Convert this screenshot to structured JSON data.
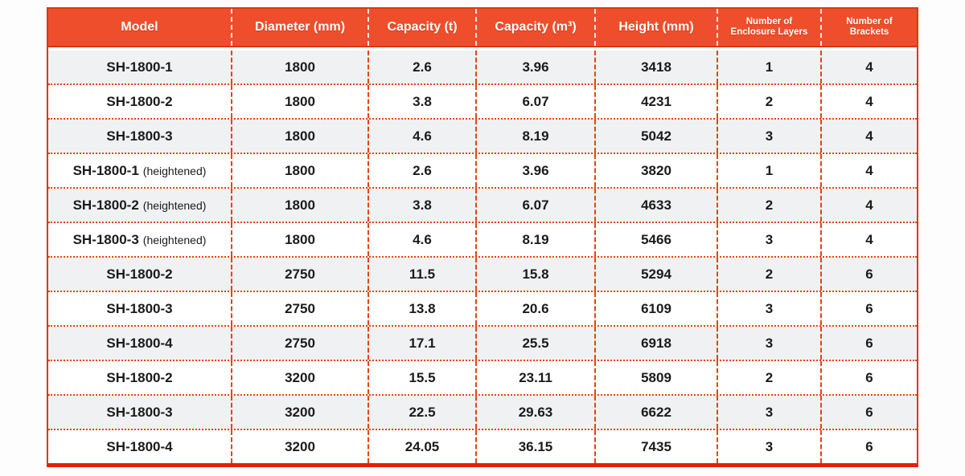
{
  "table": {
    "columns": [
      {
        "id": "model",
        "label": "Model",
        "small": false
      },
      {
        "id": "diameter",
        "label": "Diameter (mm)",
        "small": false
      },
      {
        "id": "capacity-t",
        "label": "Capacity (t)",
        "small": false
      },
      {
        "id": "capacity-m3",
        "label": "Capacity (m³)",
        "small": false
      },
      {
        "id": "height",
        "label": "Height (mm)",
        "small": false
      },
      {
        "id": "layers",
        "label": "Number of\nEnclosure Layers",
        "small": true
      },
      {
        "id": "brackets",
        "label": "Number of\nBrackets",
        "small": true
      }
    ],
    "rows": [
      {
        "model": "SH-1800-1",
        "suffix": "",
        "diameter": "1800",
        "capacity_t": "2.6",
        "capacity_m3": "3.96",
        "height": "3418",
        "layers": "1",
        "brackets": "4"
      },
      {
        "model": "SH-1800-2",
        "suffix": "",
        "diameter": "1800",
        "capacity_t": "3.8",
        "capacity_m3": "6.07",
        "height": "4231",
        "layers": "2",
        "brackets": "4"
      },
      {
        "model": "SH-1800-3",
        "suffix": "",
        "diameter": "1800",
        "capacity_t": "4.6",
        "capacity_m3": "8.19",
        "height": "5042",
        "layers": "3",
        "brackets": "4"
      },
      {
        "model": "SH-1800-1",
        "suffix": "(heightened)",
        "diameter": "1800",
        "capacity_t": "2.6",
        "capacity_m3": "3.96",
        "height": "3820",
        "layers": "1",
        "brackets": "4"
      },
      {
        "model": "SH-1800-2",
        "suffix": "(heightened)",
        "diameter": "1800",
        "capacity_t": "3.8",
        "capacity_m3": "6.07",
        "height": "4633",
        "layers": "2",
        "brackets": "4"
      },
      {
        "model": "SH-1800-3",
        "suffix": "(heightened)",
        "diameter": "1800",
        "capacity_t": "4.6",
        "capacity_m3": "8.19",
        "height": "5466",
        "layers": "3",
        "brackets": "4"
      },
      {
        "model": "SH-1800-2",
        "suffix": "",
        "diameter": "2750",
        "capacity_t": "11.5",
        "capacity_m3": "15.8",
        "height": "5294",
        "layers": "2",
        "brackets": "6"
      },
      {
        "model": "SH-1800-3",
        "suffix": "",
        "diameter": "2750",
        "capacity_t": "13.8",
        "capacity_m3": "20.6",
        "height": "6109",
        "layers": "3",
        "brackets": "6"
      },
      {
        "model": "SH-1800-4",
        "suffix": "",
        "diameter": "2750",
        "capacity_t": "17.1",
        "capacity_m3": "25.5",
        "height": "6918",
        "layers": "3",
        "brackets": "6"
      },
      {
        "model": "SH-1800-2",
        "suffix": "",
        "diameter": "3200",
        "capacity_t": "15.5",
        "capacity_m3": "23.11",
        "height": "5809",
        "layers": "2",
        "brackets": "6"
      },
      {
        "model": "SH-1800-3",
        "suffix": "",
        "diameter": "3200",
        "capacity_t": "22.5",
        "capacity_m3": "29.63",
        "height": "6622",
        "layers": "3",
        "brackets": "6"
      },
      {
        "model": "SH-1800-4",
        "suffix": "",
        "diameter": "3200",
        "capacity_t": "24.05",
        "capacity_m3": "36.15",
        "height": "7435",
        "layers": "3",
        "brackets": "6"
      }
    ]
  },
  "colors": {
    "header_bg": "#ee4e2b",
    "outer_border": "#e23512",
    "bottom_line": "#e81c0c",
    "dashed_line": "#e8430f",
    "row_odd_bg": "#f0f1f2",
    "row_even_bg": "#ffffff",
    "header_text": "#ffffff",
    "body_text": "#1b1b1b"
  }
}
